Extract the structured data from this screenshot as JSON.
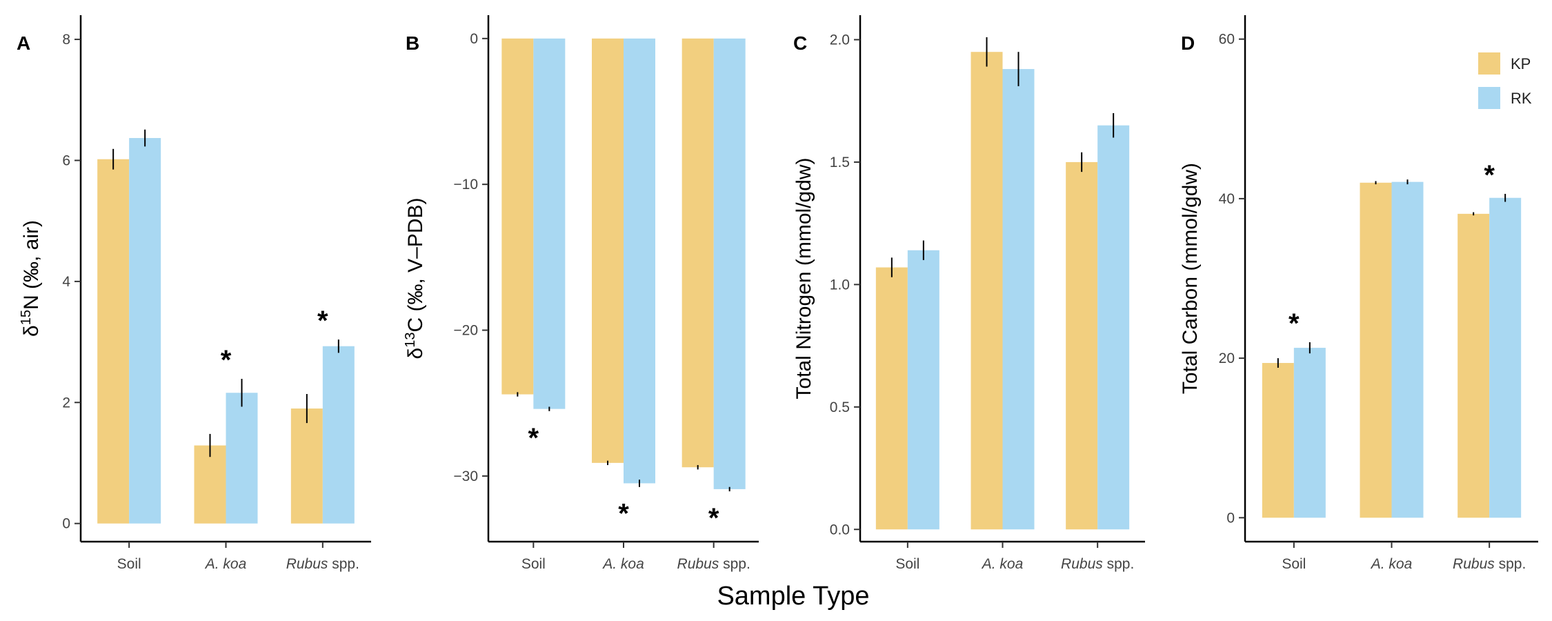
{
  "figure": {
    "x_axis_title": "Sample Type",
    "colors": {
      "KP": "#F2CF7F",
      "RK": "#A9D8F2"
    },
    "legend": [
      {
        "name": "KP",
        "color": "#F2CF7F"
      },
      {
        "name": "RK",
        "color": "#A9D8F2"
      }
    ],
    "categories": [
      {
        "italic": "",
        "plain": "Soil"
      },
      {
        "italic": "A. koa",
        "plain": ""
      },
      {
        "italic": "Rubus",
        "plain": " spp."
      }
    ]
  },
  "chart_data": [
    {
      "type": "bar",
      "panel": "A",
      "ylabel_symbol": "δ",
      "ylabel_sup": "15",
      "ylabel_rest": "N (‰, air)",
      "ylim": [
        -0.3,
        8.4
      ],
      "yticks": [
        0,
        2,
        4,
        6,
        8
      ],
      "categories": [
        "Soil",
        "A. koa",
        "Rubus spp."
      ],
      "series": [
        {
          "name": "KP",
          "values": [
            6.02,
            1.29,
            1.9
          ],
          "errors": [
            0.17,
            0.19,
            0.24
          ]
        },
        {
          "name": "RK",
          "values": [
            6.37,
            2.16,
            2.93
          ],
          "errors": [
            0.14,
            0.23,
            0.11
          ]
        }
      ],
      "significant": [
        false,
        true,
        true
      ]
    },
    {
      "type": "bar",
      "panel": "B",
      "ylabel_symbol": "δ",
      "ylabel_sup": "13",
      "ylabel_rest": "C (‰, V–PDB)",
      "ylim": [
        -34.5,
        1.6
      ],
      "yticks": [
        0,
        -10,
        -20,
        -30
      ],
      "ytick_labels": [
        "0",
        "−10",
        "−20",
        "−30"
      ],
      "categories": [
        "Soil",
        "A. koa",
        "Rubus spp."
      ],
      "series": [
        {
          "name": "KP",
          "values": [
            -24.4,
            -29.1,
            -29.4
          ],
          "errors": [
            0.15,
            0.15,
            0.15
          ]
        },
        {
          "name": "RK",
          "values": [
            -25.4,
            -30.5,
            -30.9
          ],
          "errors": [
            0.15,
            0.25,
            0.15
          ]
        }
      ],
      "significant": [
        true,
        true,
        true
      ]
    },
    {
      "type": "bar",
      "panel": "C",
      "ylabel": "Total Nitrogen (mmol/gdw)",
      "ylim": [
        -0.05,
        2.1
      ],
      "yticks": [
        0,
        0.5,
        1,
        1.5,
        2
      ],
      "ytick_labels": [
        "0.0",
        "0.5",
        "1.0",
        "1.5",
        "2.0"
      ],
      "categories": [
        "Soil",
        "A. koa",
        "Rubus spp."
      ],
      "series": [
        {
          "name": "KP",
          "values": [
            1.07,
            1.95,
            1.5
          ],
          "errors": [
            0.04,
            0.06,
            0.04
          ]
        },
        {
          "name": "RK",
          "values": [
            1.14,
            1.88,
            1.65
          ],
          "errors": [
            0.04,
            0.07,
            0.05
          ]
        }
      ],
      "significant": [
        false,
        false,
        false
      ]
    },
    {
      "type": "bar",
      "panel": "D",
      "ylabel": "Total Carbon (mmol/gdw)",
      "ylim": [
        -3,
        63
      ],
      "yticks": [
        0,
        20,
        40,
        60
      ],
      "categories": [
        "Soil",
        "A. koa",
        "Rubus spp."
      ],
      "series": [
        {
          "name": "KP",
          "values": [
            19.4,
            42.0,
            38.1
          ],
          "errors": [
            0.6,
            0.2,
            0.2
          ]
        },
        {
          "name": "RK",
          "values": [
            21.3,
            42.1,
            40.1
          ],
          "errors": [
            0.7,
            0.3,
            0.5
          ]
        }
      ],
      "significant": [
        true,
        false,
        true
      ]
    }
  ]
}
